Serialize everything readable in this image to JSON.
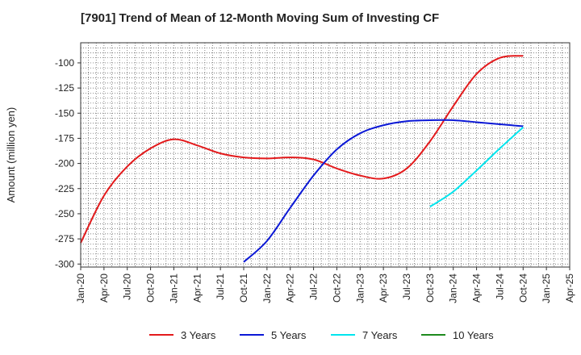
{
  "chart_data": {
    "type": "line",
    "title": "[7901]  Trend of Mean of 12-Month Moving Sum of Investing CF",
    "ylabel": "Amount (million yen)",
    "xlabel": "",
    "ylim": [
      -303,
      -80
    ],
    "yticks": [
      -100,
      -125,
      -150,
      -175,
      -200,
      -225,
      -250,
      -275,
      -300
    ],
    "x_categories": [
      "Jan-20",
      "Apr-20",
      "Jul-20",
      "Oct-20",
      "Jan-21",
      "Apr-21",
      "Jul-21",
      "Oct-21",
      "Jan-22",
      "Apr-22",
      "Jul-22",
      "Oct-22",
      "Jan-23",
      "Apr-23",
      "Jul-23",
      "Oct-23",
      "Jan-24",
      "Apr-24",
      "Jul-24",
      "Oct-24",
      "Jan-25",
      "Apr-25"
    ],
    "grid": true,
    "legend_position": "bottom",
    "series": [
      {
        "name": "3 Years",
        "color": "#e31a1c",
        "points": [
          [
            "Jan-20",
            -279
          ],
          [
            "Apr-20",
            -232
          ],
          [
            "Jul-20",
            -203
          ],
          [
            "Oct-20",
            -185
          ],
          [
            "Jan-21",
            -176
          ],
          [
            "Apr-21",
            -182
          ],
          [
            "Jul-21",
            -190
          ],
          [
            "Oct-21",
            -194
          ],
          [
            "Jan-22",
            -195
          ],
          [
            "Apr-22",
            -194
          ],
          [
            "Jul-22",
            -196
          ],
          [
            "Oct-22",
            -205
          ],
          [
            "Jan-23",
            -212
          ],
          [
            "Apr-23",
            -215
          ],
          [
            "Jul-23",
            -205
          ],
          [
            "Oct-23",
            -178
          ],
          [
            "Jan-24",
            -143
          ],
          [
            "Apr-24",
            -111
          ],
          [
            "Jul-24",
            -95
          ],
          [
            "Oct-24",
            -93
          ]
        ]
      },
      {
        "name": "5 Years",
        "color": "#0b18d6",
        "points": [
          [
            "Oct-21",
            -298
          ],
          [
            "Jan-22",
            -277
          ],
          [
            "Apr-22",
            -244
          ],
          [
            "Jul-22",
            -212
          ],
          [
            "Oct-22",
            -186
          ],
          [
            "Jan-23",
            -170
          ],
          [
            "Apr-23",
            -162
          ],
          [
            "Jul-23",
            -158
          ],
          [
            "Oct-23",
            -157
          ],
          [
            "Jan-24",
            -157
          ],
          [
            "Apr-24",
            -159
          ],
          [
            "Jul-24",
            -161
          ],
          [
            "Oct-24",
            -163
          ]
        ]
      },
      {
        "name": "7 Years",
        "color": "#00e5ee",
        "points": [
          [
            "Oct-23",
            -243
          ],
          [
            "Jan-24",
            -228
          ],
          [
            "Apr-24",
            -207
          ],
          [
            "Jul-24",
            -185
          ],
          [
            "Oct-24",
            -164
          ]
        ]
      },
      {
        "name": "10 Years",
        "color": "#1e8a1e",
        "points": []
      }
    ]
  }
}
